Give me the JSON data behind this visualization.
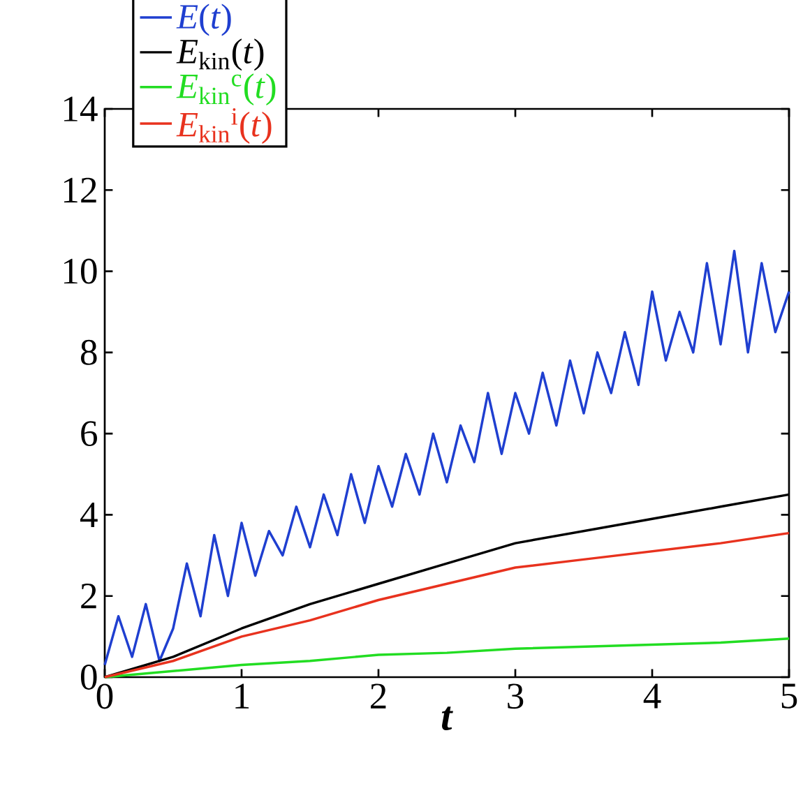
{
  "chart_data": {
    "type": "line",
    "xlabel": "*t*",
    "xlim": [
      0,
      5
    ],
    "ylim": [
      0,
      14
    ],
    "xticks": [
      0,
      1,
      2,
      3,
      4,
      5
    ],
    "yticks": [
      0,
      2,
      4,
      6,
      8,
      10,
      12,
      14
    ],
    "legend": "top left",
    "grid": false,
    "series": [
      {
        "name": "*E*(*t*)",
        "color": "#1f3fd0",
        "x": [
          0,
          0.1,
          0.2,
          0.3,
          0.4,
          0.5,
          0.6,
          0.7,
          0.8,
          0.9,
          1.0,
          1.1,
          1.2,
          1.3,
          1.4,
          1.5,
          1.6,
          1.7,
          1.8,
          1.9,
          2.0,
          2.1,
          2.2,
          2.3,
          2.4,
          2.5,
          2.6,
          2.7,
          2.8,
          2.9,
          3.0,
          3.1,
          3.2,
          3.3,
          3.4,
          3.5,
          3.6,
          3.7,
          3.8,
          3.9,
          4.0,
          4.1,
          4.2,
          4.3,
          4.4,
          4.5,
          4.6,
          4.7,
          4.8,
          4.9,
          5.0
        ],
        "values": [
          0.3,
          1.5,
          0.5,
          1.8,
          0.4,
          1.2,
          2.8,
          1.5,
          3.5,
          2.0,
          3.8,
          2.5,
          3.6,
          3.0,
          4.2,
          3.2,
          4.5,
          3.5,
          5.0,
          3.8,
          5.2,
          4.2,
          5.5,
          4.5,
          6.0,
          4.8,
          6.2,
          5.3,
          7.0,
          5.5,
          7.0,
          6.0,
          7.5,
          6.2,
          7.8,
          6.5,
          8.0,
          7.0,
          8.5,
          7.2,
          9.5,
          7.8,
          9.0,
          8.0,
          10.2,
          8.2,
          10.5,
          8.0,
          10.2,
          8.5,
          9.5
        ]
      },
      {
        "name": "*E*$_{kin}$(*t*)",
        "color": "#000000",
        "x": [
          0,
          0.5,
          1,
          1.5,
          2,
          2.5,
          3,
          3.5,
          4,
          4.5,
          5
        ],
        "values": [
          0,
          0.5,
          1.2,
          1.8,
          2.3,
          2.8,
          3.3,
          3.6,
          3.9,
          4.2,
          4.5
        ]
      },
      {
        "name": "*E*$_{kin}$$^{c}$(*t*)",
        "color": "#22dd22",
        "x": [
          0,
          0.5,
          1,
          1.5,
          2,
          2.5,
          3,
          3.5,
          4,
          4.5,
          5
        ],
        "values": [
          0,
          0.15,
          0.3,
          0.4,
          0.55,
          0.6,
          0.7,
          0.75,
          0.8,
          0.85,
          0.95
        ]
      },
      {
        "name": "*E*$_{kin}$$^{i}$(*t*)",
        "color": "#e8321e",
        "x": [
          0,
          0.5,
          1,
          1.5,
          2,
          2.5,
          3,
          3.5,
          4,
          4.5,
          5
        ],
        "values": [
          0,
          0.4,
          1.0,
          1.4,
          1.9,
          2.3,
          2.7,
          2.9,
          3.1,
          3.3,
          3.55
        ]
      }
    ]
  }
}
